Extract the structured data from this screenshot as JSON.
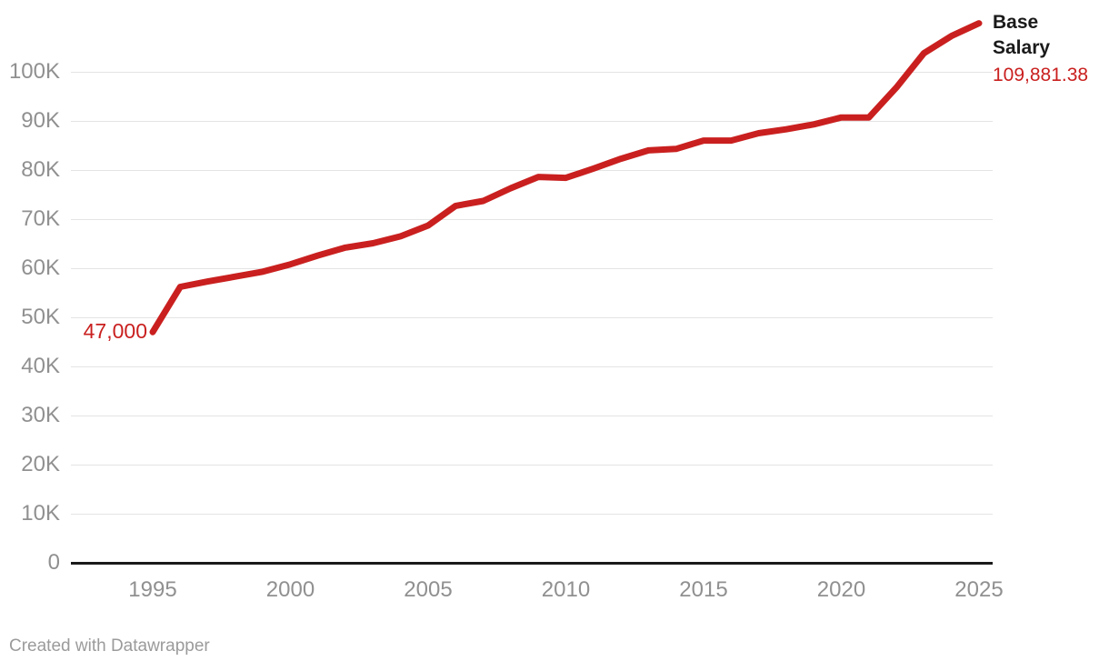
{
  "chart": {
    "start_point_label": "47,000",
    "series_label_line1": "Base",
    "series_label_line2": "Salary",
    "end_value_label": "109,881.38",
    "colors": {
      "line": "#c9201f",
      "value_label": "#c9201f",
      "series_label": "#1a1a1a",
      "axis_text": "#909090",
      "gridline": "#e4e4e4",
      "baseline": "#1a1a1a"
    }
  },
  "footer": {
    "attribution": "Created with Datawrapper"
  },
  "chart_data": {
    "type": "line",
    "title": "",
    "xlabel": "",
    "ylabel": "",
    "grid": "horizontal",
    "legend_position": "end-of-line",
    "ylim": [
      0,
      112000
    ],
    "xlim": [
      1992,
      2026
    ],
    "x": [
      1995,
      1996,
      1997,
      1998,
      1999,
      2000,
      2001,
      2002,
      2003,
      2004,
      2005,
      2006,
      2007,
      2008,
      2009,
      2010,
      2011,
      2012,
      2013,
      2014,
      2015,
      2016,
      2017,
      2018,
      2019,
      2020,
      2021,
      2022,
      2023,
      2024,
      2025
    ],
    "series": [
      {
        "name": "Base Salary",
        "values": [
          47000,
          56200,
          57300,
          58300,
          59300,
          60800,
          62600,
          64200,
          65100,
          66500,
          68700,
          72700,
          73700,
          76300,
          78600,
          78400,
          80300,
          82300,
          84000,
          84300,
          86000,
          86000,
          87500,
          88300,
          89300,
          90700,
          90700,
          96800,
          103800,
          107300,
          109881.38
        ]
      }
    ],
    "x_ticks": [
      {
        "value": 1995,
        "label": "1995"
      },
      {
        "value": 2000,
        "label": "2000"
      },
      {
        "value": 2005,
        "label": "2005"
      },
      {
        "value": 2010,
        "label": "2010"
      },
      {
        "value": 2015,
        "label": "2015"
      },
      {
        "value": 2020,
        "label": "2020"
      },
      {
        "value": 2025,
        "label": "2025"
      }
    ],
    "y_ticks": [
      {
        "value": 0,
        "label": "0"
      },
      {
        "value": 10000,
        "label": "10K"
      },
      {
        "value": 20000,
        "label": "20K"
      },
      {
        "value": 30000,
        "label": "30K"
      },
      {
        "value": 40000,
        "label": "40K"
      },
      {
        "value": 50000,
        "label": "50K"
      },
      {
        "value": 60000,
        "label": "60K"
      },
      {
        "value": 70000,
        "label": "70K"
      },
      {
        "value": 80000,
        "label": "80K"
      },
      {
        "value": 90000,
        "label": "90K"
      },
      {
        "value": 100000,
        "label": "100K"
      }
    ],
    "annotations": {
      "first_value_label": "47,000",
      "last_value_label": "109,881.38"
    }
  }
}
